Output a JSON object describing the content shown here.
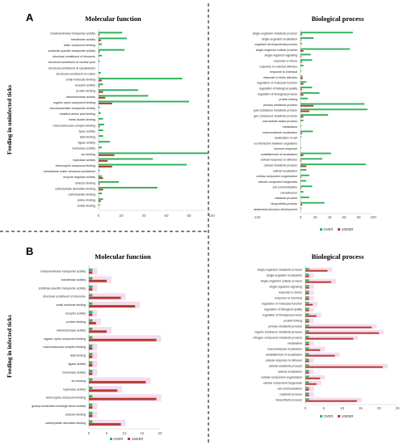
{
  "section_labels": {
    "a": "A",
    "b": "B"
  },
  "colors": {
    "over": "#2fb35a",
    "under": "#b53a2e",
    "shade": "#f6dcef"
  },
  "chart_data": [
    {
      "id": "a-mf",
      "type": "bar",
      "title": "Molecular function",
      "ylabel": "Feeding in uninfected ticks",
      "xlim": [
        0,
        100
      ],
      "xticks": [
        0,
        20,
        40,
        60,
        80,
        100
      ],
      "shaded": false,
      "legend": false,
      "categories": [
        "transmembrane transporter activity",
        "transferase activity",
        "sulfur compound binding",
        "substrate-specific transporter activity",
        "structural constituent of ribosome",
        "structural constituent of nuclear pore",
        "structural constituent of cytoskeleton",
        "structural constituent of cuticle",
        "small molecule binding",
        "receptor activity",
        "protein binding",
        "oxidoreductase activity",
        "organic cyclic compound binding",
        "neurotransmitter transporter activity",
        "modified amino acid binding",
        "metal cluster binding",
        "macromolecular complex binding",
        "lyase activity",
        "lipid binding",
        "ligase activity",
        "isomerase activity",
        "ion binding",
        "hydrolase activity",
        "heterocyclic compound binding",
        "extracellular matrix structural constituent",
        "enzyme regulator activity",
        "cofactor binding",
        "carbohydrate derivative binding",
        "carbohydrate binding",
        "amine binding",
        "amide binding"
      ],
      "series": [
        {
          "name": "OVER",
          "values": [
            21,
            25,
            3,
            23,
            3,
            1,
            0,
            2,
            74,
            4,
            35,
            44,
            80,
            1,
            2,
            4,
            5,
            4,
            4,
            10,
            3,
            97,
            48,
            78,
            1,
            3,
            18,
            52,
            3,
            4,
            1
          ]
        },
        {
          "name": "UNDER",
          "values": [
            1,
            2,
            0,
            1,
            0,
            0,
            0,
            0,
            3,
            1,
            4,
            6,
            12,
            0,
            0,
            0,
            1,
            0,
            0,
            0,
            0,
            14,
            8,
            12,
            0,
            4,
            1,
            4,
            0,
            2,
            0
          ]
        }
      ]
    },
    {
      "id": "a-bp",
      "type": "bar",
      "title": "Biological process",
      "ylabel": "",
      "xlim": [
        -120,
        100
      ],
      "xticks": [
        -120,
        0,
        20,
        40,
        60,
        80,
        100
      ],
      "shaded": false,
      "legend": true,
      "categories": [
        "single-organism metabolic process",
        "single-organism localization",
        "organism developmental process",
        "single-organism cellular process",
        "single-organism signaling",
        "response to stress",
        "response to external stimulus",
        "response to chemical",
        "response to biotic stimulus",
        "regulation of molecular function",
        "regulation of biological quality",
        "regulation of biological process",
        "protein folding",
        "primary metabolic process",
        "pain substance metabolic process",
        "gen compound metabolic process",
        "microtubule-based process",
        "metabolism",
        "macromolecule localization",
        "localization of cell",
        "es interaction between organisms",
        "immune response",
        "establishment of localization",
        "cellular response to stimulus",
        "cellular metabolic process",
        "cellular localization",
        "cellular component organization",
        "cellular component biogenesis",
        "cell communication",
        "cell adhesion",
        "catabolic process",
        "biosynthetic process",
        "anatomical structure development"
      ],
      "series": [
        {
          "name": "OVER",
          "values": [
            72,
            18,
            2,
            68,
            14,
            16,
            4,
            1,
            3,
            8,
            16,
            26,
            10,
            88,
            92,
            38,
            4,
            1,
            17,
            1,
            0,
            1,
            42,
            30,
            90,
            8,
            12,
            8,
            16,
            4,
            12,
            33,
            1
          ]
        },
        {
          "name": "UNDER",
          "values": [
            2,
            1,
            0,
            4,
            1,
            2,
            0,
            0,
            3,
            4,
            2,
            4,
            0,
            18,
            12,
            4,
            0,
            0,
            2,
            0,
            0,
            0,
            4,
            1,
            8,
            0,
            1,
            0,
            1,
            0,
            0,
            2,
            0
          ]
        }
      ]
    },
    {
      "id": "b-mf",
      "type": "bar",
      "title": "Molecular function",
      "ylabel": "Feeding in infected ticks",
      "xlim": [
        0,
        20
      ],
      "xticks": [
        0,
        5,
        10,
        15,
        20
      ],
      "shaded": true,
      "legend": true,
      "categories": [
        "transmembrane transporter activity",
        "transferase activity",
        "substrate-specific transporter activity",
        "structural constituent of ribosome",
        "small molecule binding",
        "receptor activity",
        "protein binding",
        "oxidoreductase activity",
        "organic cyclic compound binding",
        "macromolecular complex binding",
        "lipid binding",
        "ligase activity",
        "isomerase activity",
        "ion binding",
        "hydrolase activity",
        "heterocyclic compound binding",
        "guanyl-nucleotide exchange factor activity",
        "cofactor binding",
        "carbohydrate derivative binding"
      ],
      "series": [
        {
          "name": "OVER",
          "values": [
            1,
            1,
            1,
            1,
            1,
            1,
            1,
            1,
            1,
            1,
            1,
            1,
            1,
            1,
            1,
            1,
            1,
            1,
            1
          ]
        },
        {
          "name": "UNDER",
          "values": [
            1,
            5,
            1,
            9,
            13,
            1,
            2,
            5,
            19,
            1,
            1,
            1,
            1,
            16,
            8,
            19,
            1,
            1,
            9
          ]
        }
      ]
    },
    {
      "id": "b-bp",
      "type": "bar",
      "title": "Biological process",
      "ylabel": "",
      "xlim": [
        0,
        25
      ],
      "xticks": [
        0,
        5,
        10,
        15,
        20,
        25
      ],
      "shaded": true,
      "legend": true,
      "categories": [
        "single-organism metabolic process",
        "single-organism localization",
        "single-organism cellular process",
        "single-organism signaling",
        "response to stress",
        "response to chemical",
        "regulation of molecular function",
        "regulation of biological quality",
        "regulation of biological process",
        "protein folding",
        "primary metabolic process",
        "organic substance metabolic process",
        "nitrogen compound metabolic process",
        "metabolism",
        "macromolecule localization",
        "establishment of localization",
        "cellular response to stimulus",
        "cellular metabolic process",
        "cellular localization",
        "cellular component organization",
        "cellular component biogenesis",
        "cell communication",
        "catabolic process",
        "biosynthetic process"
      ],
      "series": [
        {
          "name": "OVER",
          "values": [
            1,
            1,
            1,
            1,
            1,
            1,
            1,
            1,
            1,
            1,
            1,
            1,
            1,
            1,
            1,
            1,
            1,
            1,
            1,
            1,
            1,
            1,
            1,
            1
          ]
        },
        {
          "name": "UNDER",
          "values": [
            6,
            1,
            7,
            1,
            1,
            1,
            2,
            1,
            3,
            1,
            18,
            20,
            13,
            1,
            4,
            8,
            1,
            21,
            1,
            4,
            3,
            1,
            1,
            14
          ]
        }
      ]
    }
  ]
}
